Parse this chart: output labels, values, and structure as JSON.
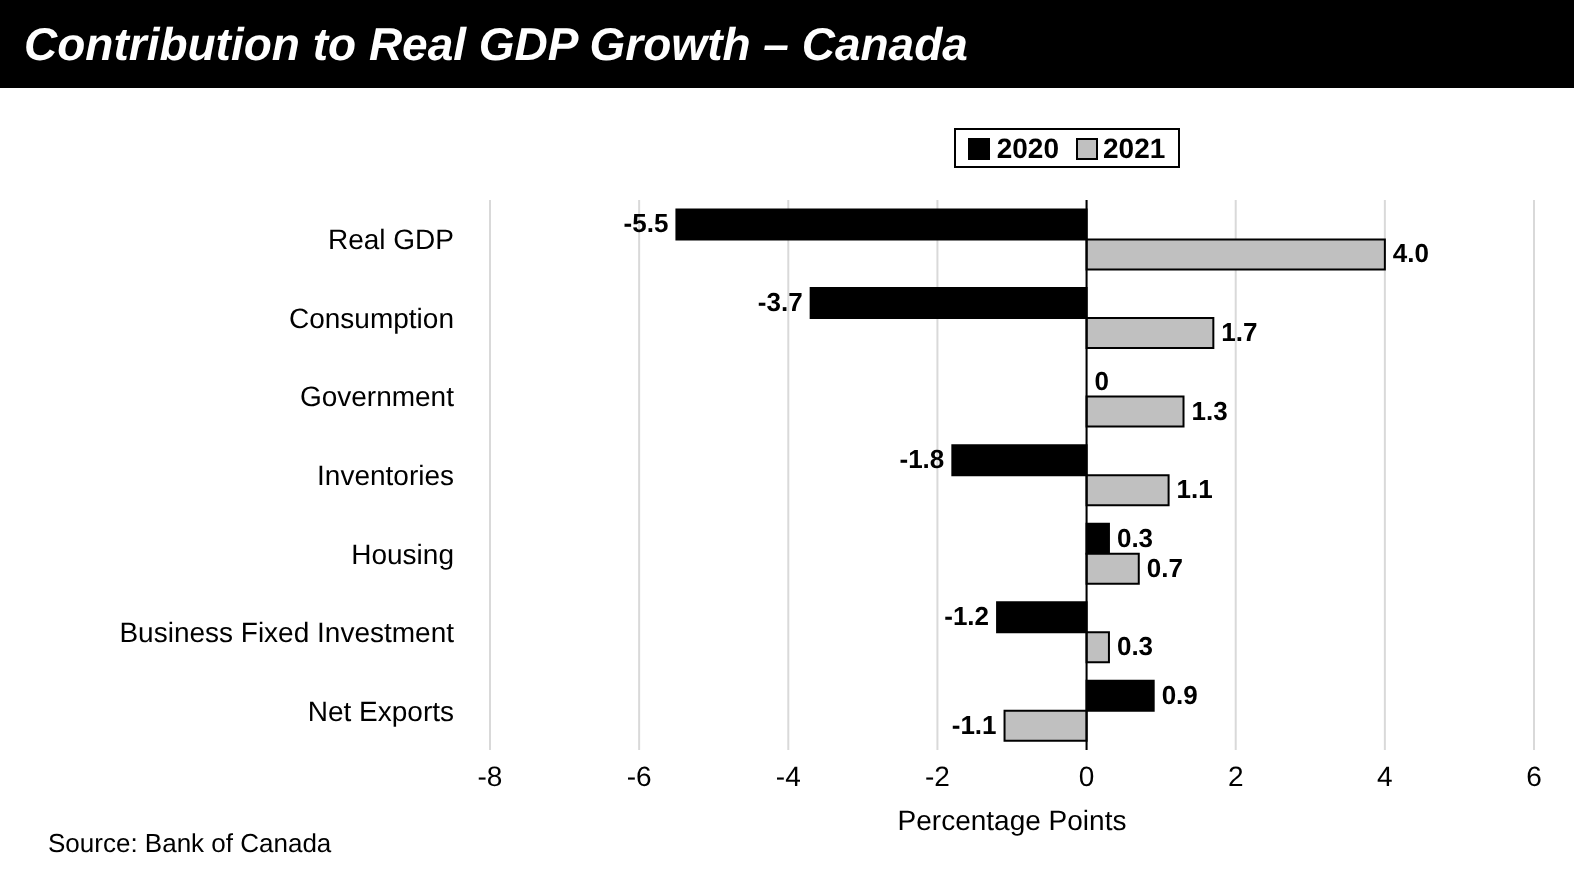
{
  "chart_data": {
    "type": "bar",
    "orientation": "horizontal",
    "title": "Contribution to Real GDP Growth – Canada",
    "xlabel": "Percentage Points",
    "categories": [
      "Real GDP",
      "Consumption",
      "Government",
      "Inventories",
      "Housing",
      "Business Fixed Investment",
      "Net Exports"
    ],
    "series": [
      {
        "name": "2020",
        "color": "#000000",
        "values": [
          -5.5,
          -3.7,
          0,
          -1.8,
          0.3,
          -1.2,
          0.9
        ],
        "value_labels": [
          "-5.5",
          "-3.7",
          "0",
          "-1.8",
          "0.3",
          "-1.2",
          "0.9"
        ]
      },
      {
        "name": "2021",
        "color": "#c0c0c0",
        "values": [
          4.0,
          1.7,
          1.3,
          1.1,
          0.7,
          0.3,
          -1.1
        ],
        "value_labels": [
          "4.0",
          "1.7",
          "1.3",
          "1.1",
          "0.7",
          "0.3",
          "-1.1"
        ]
      }
    ],
    "xlim": [
      -8,
      6
    ],
    "xticks": [
      -8,
      -6,
      -4,
      -2,
      0,
      2,
      4,
      6
    ],
    "grid": "x",
    "legend": "top",
    "annotations": [
      "Source: Bank of Canada"
    ]
  }
}
